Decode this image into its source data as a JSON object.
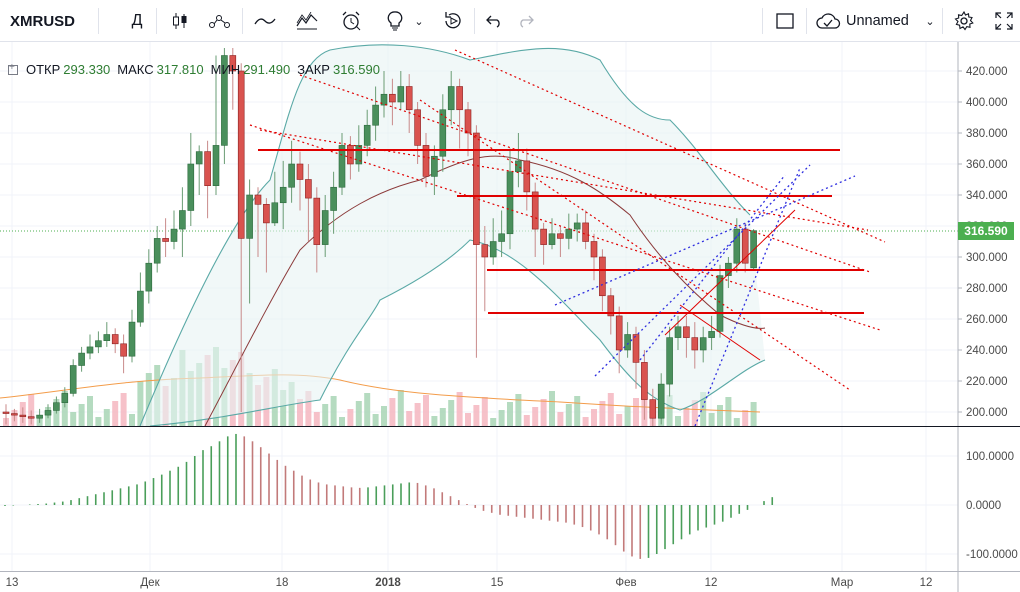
{
  "toolbar": {
    "symbol": "XMRUSD",
    "interval": "Д",
    "layout_name": "Unnamed"
  },
  "legend": {
    "open_label": "ОТКР",
    "open": "293.330",
    "high_label": "МАКС",
    "high": "317.810",
    "low_label": "МИН",
    "low": "291.490",
    "close_label": "ЗАКР",
    "close": "316.590"
  },
  "price_axis": {
    "ticks": [
      "420.000",
      "400.000",
      "380.000",
      "360.000",
      "340.000",
      "320.000",
      "300.000",
      "280.000",
      "260.000",
      "240.000",
      "220.000",
      "200.000"
    ],
    "last_price": "316.590"
  },
  "macd_axis": {
    "ticks": [
      "100.0000",
      "0.0000",
      "-100.0000"
    ]
  },
  "time_axis": {
    "ticks": [
      "13",
      "Дек",
      "18",
      "2018",
      "15",
      "Фев",
      "12",
      "Мар",
      "12"
    ]
  },
  "colors": {
    "up": "#4a8f5c",
    "down": "#d9534f",
    "trend_red": "#e00000",
    "band": "#5aa9a6",
    "ma_brown": "#8b3a3a",
    "volume_ma": "#f39c4a",
    "last_price_bg": "#4caf50"
  },
  "chart_data": {
    "type": "candlestick",
    "ylim": [
      190,
      430
    ],
    "candles": [
      [
        4,
        200,
        199,
        205,
        192
      ],
      [
        5,
        199,
        198,
        202,
        194
      ],
      [
        6,
        198,
        197,
        203,
        193
      ],
      [
        7,
        197,
        196,
        201,
        192
      ],
      [
        8,
        196,
        198,
        202,
        193
      ],
      [
        9,
        198,
        201,
        205,
        196
      ],
      [
        10,
        201,
        206,
        210,
        199
      ],
      [
        11,
        206,
        212,
        216,
        203
      ],
      [
        12,
        212,
        230,
        234,
        210
      ],
      [
        13,
        230,
        238,
        242,
        226
      ],
      [
        14,
        238,
        242,
        250,
        234
      ],
      [
        15,
        242,
        246,
        252,
        238
      ],
      [
        16,
        246,
        250,
        258,
        242
      ],
      [
        17,
        250,
        244,
        254,
        238
      ],
      [
        18,
        244,
        236,
        250,
        225
      ],
      [
        19,
        236,
        258,
        266,
        232
      ],
      [
        20,
        258,
        278,
        290,
        255
      ],
      [
        21,
        278,
        296,
        305,
        270
      ],
      [
        22,
        296,
        312,
        320,
        290
      ],
      [
        23,
        312,
        310,
        325,
        300
      ],
      [
        24,
        310,
        318,
        330,
        305
      ],
      [
        25,
        318,
        330,
        345,
        300
      ],
      [
        26,
        330,
        360,
        380,
        320
      ],
      [
        27,
        360,
        368,
        372,
        340
      ],
      [
        28,
        368,
        346,
        375,
        325
      ],
      [
        29,
        346,
        372,
        430,
        340
      ],
      [
        30,
        372,
        430,
        460,
        360
      ],
      [
        31,
        430,
        420,
        440,
        395
      ],
      [
        32,
        420,
        312,
        425,
        200
      ],
      [
        33,
        312,
        340,
        350,
        270
      ],
      [
        34,
        340,
        334,
        345,
        300
      ],
      [
        35,
        334,
        322,
        338,
        290
      ],
      [
        36,
        322,
        335,
        355,
        320
      ],
      [
        37,
        335,
        345,
        362,
        318
      ],
      [
        38,
        345,
        360,
        375,
        335
      ],
      [
        39,
        360,
        350,
        368,
        330
      ],
      [
        40,
        350,
        338,
        360,
        310
      ],
      [
        41,
        338,
        308,
        345,
        290
      ],
      [
        42,
        308,
        330,
        340,
        300
      ],
      [
        43,
        330,
        345,
        355,
        315
      ],
      [
        44,
        345,
        372,
        380,
        340
      ],
      [
        45,
        372,
        360,
        378,
        350
      ],
      [
        46,
        360,
        372,
        385,
        355
      ],
      [
        47,
        372,
        385,
        395,
        365
      ],
      [
        48,
        385,
        398,
        410,
        375
      ],
      [
        49,
        398,
        405,
        420,
        390
      ],
      [
        50,
        405,
        400,
        415,
        385
      ],
      [
        51,
        400,
        410,
        420,
        395
      ],
      [
        52,
        410,
        395,
        418,
        380
      ],
      [
        53,
        395,
        372,
        400,
        360
      ],
      [
        54,
        372,
        352,
        380,
        345
      ],
      [
        55,
        352,
        365,
        372,
        340
      ],
      [
        56,
        365,
        395,
        405,
        355
      ],
      [
        57,
        395,
        410,
        420,
        385
      ],
      [
        58,
        410,
        395,
        415,
        370
      ],
      [
        59,
        395,
        380,
        400,
        365
      ],
      [
        60,
        380,
        308,
        385,
        235
      ],
      [
        61,
        308,
        300,
        320,
        265
      ],
      [
        62,
        300,
        310,
        325,
        295
      ],
      [
        63,
        310,
        315,
        330,
        300
      ],
      [
        64,
        315,
        355,
        370,
        305
      ],
      [
        65,
        355,
        362,
        380,
        345
      ],
      [
        66,
        362,
        342,
        370,
        330
      ],
      [
        67,
        342,
        318,
        348,
        300
      ],
      [
        68,
        318,
        308,
        322,
        295
      ],
      [
        69,
        308,
        315,
        325,
        305
      ],
      [
        70,
        315,
        312,
        320,
        300
      ],
      [
        71,
        312,
        318,
        328,
        305
      ],
      [
        72,
        318,
        322,
        328,
        310
      ],
      [
        73,
        322,
        310,
        330,
        305
      ],
      [
        74,
        310,
        300,
        315,
        285
      ],
      [
        75,
        300,
        275,
        305,
        265
      ],
      [
        76,
        275,
        262,
        280,
        250
      ],
      [
        77,
        262,
        240,
        268,
        225
      ],
      [
        78,
        240,
        250,
        258,
        235
      ],
      [
        79,
        250,
        232,
        255,
        215
      ],
      [
        80,
        232,
        208,
        240,
        195
      ],
      [
        81,
        208,
        196,
        215,
        180
      ],
      [
        82,
        196,
        218,
        225,
        192
      ],
      [
        83,
        218,
        248,
        255,
        210
      ],
      [
        84,
        248,
        255,
        262,
        240
      ],
      [
        85,
        255,
        248,
        262,
        235
      ],
      [
        86,
        248,
        240,
        258,
        228
      ],
      [
        87,
        240,
        248,
        255,
        232
      ],
      [
        88,
        248,
        252,
        262,
        240
      ],
      [
        89,
        252,
        288,
        295,
        248
      ],
      [
        90,
        288,
        296,
        300,
        280
      ],
      [
        91,
        296,
        318,
        325,
        290
      ],
      [
        92,
        318,
        296,
        322,
        290
      ],
      [
        93,
        293,
        317,
        318,
        291
      ]
    ],
    "series": [
      {
        "name": "",
        "values": []
      }
    ],
    "macd": [
      -2,
      -1,
      0,
      1,
      2,
      3,
      5,
      7,
      10,
      14,
      18,
      22,
      26,
      30,
      34,
      38,
      42,
      48,
      55,
      62,
      70,
      78,
      88,
      100,
      112,
      120,
      130,
      140,
      145,
      140,
      130,
      118,
      105,
      92,
      80,
      70,
      60,
      52,
      46,
      42,
      40,
      38,
      36,
      35,
      36,
      38,
      40,
      42,
      44,
      46,
      45,
      40,
      34,
      26,
      18,
      10,
      2,
      -6,
      -12,
      -16,
      -20,
      -22,
      -24,
      -26,
      -28,
      -30,
      -32,
      -34,
      -36,
      -40,
      -45,
      -52,
      -60,
      -70,
      -82,
      -95,
      -105,
      -110,
      -108,
      -100,
      -90,
      -80,
      -70,
      -60,
      -52,
      -46,
      -40,
      -34,
      -26,
      -18,
      -10,
      0,
      8,
      16
    ]
  }
}
